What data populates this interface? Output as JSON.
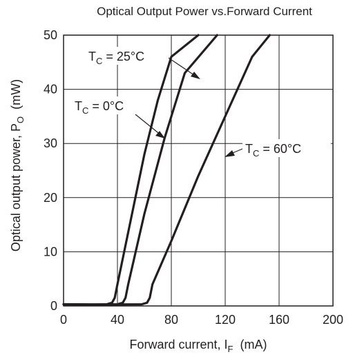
{
  "chart_data": {
    "type": "line",
    "title": "Optical Output Power vs.Forward Current",
    "xlabel": {
      "main": "Forward current, I",
      "sub": "F",
      "unit": "  (mA)"
    },
    "ylabel": {
      "main": "Optical output power, P",
      "sub": "O",
      "unit": "  (mW)"
    },
    "xlim": [
      0,
      200
    ],
    "ylim": [
      0,
      50
    ],
    "xticks": [
      "0",
      "40",
      "80",
      "120",
      "160",
      "200"
    ],
    "yticks": [
      "0",
      "10",
      "20",
      "30",
      "40",
      "50"
    ],
    "grid": true,
    "series": [
      {
        "name": "T_C = 0°C",
        "label_main": "T",
        "label_sub": "C",
        "label_rest": " = 0°C",
        "points": [
          [
            0,
            0.3
          ],
          [
            20,
            0.25
          ],
          [
            32,
            0.3
          ],
          [
            36,
            0.6
          ],
          [
            38,
            1.5
          ],
          [
            40,
            4
          ],
          [
            50,
            16
          ],
          [
            60,
            28
          ],
          [
            70,
            38
          ],
          [
            80,
            46
          ],
          [
            100,
            50
          ]
        ]
      },
      {
        "name": "T_C = 25°C",
        "label_main": "T",
        "label_sub": "C",
        "label_rest": " = 25°C",
        "points": [
          [
            0,
            0.3
          ],
          [
            25,
            0.25
          ],
          [
            40,
            0.3
          ],
          [
            44,
            0.6
          ],
          [
            46,
            1.5
          ],
          [
            48,
            4
          ],
          [
            60,
            17
          ],
          [
            75,
            31
          ],
          [
            90,
            43
          ],
          [
            114,
            50
          ]
        ]
      },
      {
        "name": "T_C = 60°C",
        "label_main": "T",
        "label_sub": "C",
        "label_rest": " = 60°C",
        "points": [
          [
            0,
            0.3
          ],
          [
            30,
            0.25
          ],
          [
            58,
            0.3
          ],
          [
            62,
            0.6
          ],
          [
            64,
            1.5
          ],
          [
            66,
            4
          ],
          [
            80,
            12
          ],
          [
            100,
            24
          ],
          [
            120,
            35
          ],
          [
            140,
            46
          ],
          [
            153,
            50
          ]
        ]
      }
    ]
  }
}
